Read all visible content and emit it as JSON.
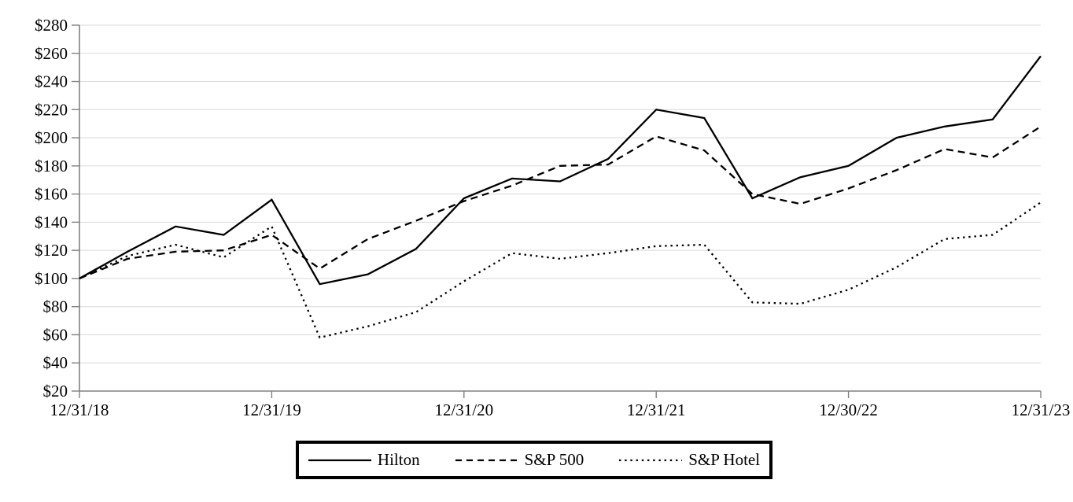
{
  "chart_data": {
    "type": "line",
    "title": "",
    "xlabel": "",
    "ylabel": "",
    "ylim": [
      20,
      280
    ],
    "y_tick_step": 20,
    "y_tick_prefix": "$",
    "grid": "horizontal-only",
    "legend_position": "bottom-center-boxed",
    "x": [
      "12/31/18",
      "3/31/19",
      "6/30/19",
      "9/30/19",
      "12/31/19",
      "3/31/20",
      "6/30/20",
      "9/30/20",
      "12/31/20",
      "3/31/21",
      "6/30/21",
      "9/30/21",
      "12/31/21",
      "3/31/22",
      "6/30/22",
      "9/30/22",
      "12/30/22",
      "3/31/23",
      "6/30/23",
      "9/29/23",
      "12/31/23"
    ],
    "x_tick_labels": [
      "12/31/18",
      "12/31/19",
      "12/31/20",
      "12/31/21",
      "12/30/22",
      "12/31/23"
    ],
    "series": [
      {
        "name": "Hilton",
        "style": "solid",
        "color": "#000000",
        "values": [
          100,
          119,
          137,
          131,
          156,
          96,
          103,
          121,
          157,
          171,
          169,
          185,
          220,
          214,
          157,
          172,
          180,
          200,
          208,
          213,
          258
        ]
      },
      {
        "name": "S&P 500",
        "style": "dashed",
        "color": "#000000",
        "values": [
          100,
          114,
          119,
          120,
          131,
          107,
          128,
          141,
          155,
          166,
          180,
          181,
          201,
          191,
          160,
          153,
          164,
          177,
          192,
          186,
          208
        ]
      },
      {
        "name": "S&P Hotel",
        "style": "dotted",
        "color": "#000000",
        "values": [
          100,
          116,
          124,
          115,
          137,
          58,
          66,
          76,
          98,
          118,
          114,
          118,
          123,
          124,
          83,
          82,
          92,
          108,
          128,
          131,
          154
        ]
      }
    ]
  },
  "colors": {
    "series_line": "#000000",
    "gridline": "#d9d9d9",
    "axis": "#808080",
    "background": "#ffffff",
    "text": "#000000",
    "legend_border": "#000000"
  }
}
